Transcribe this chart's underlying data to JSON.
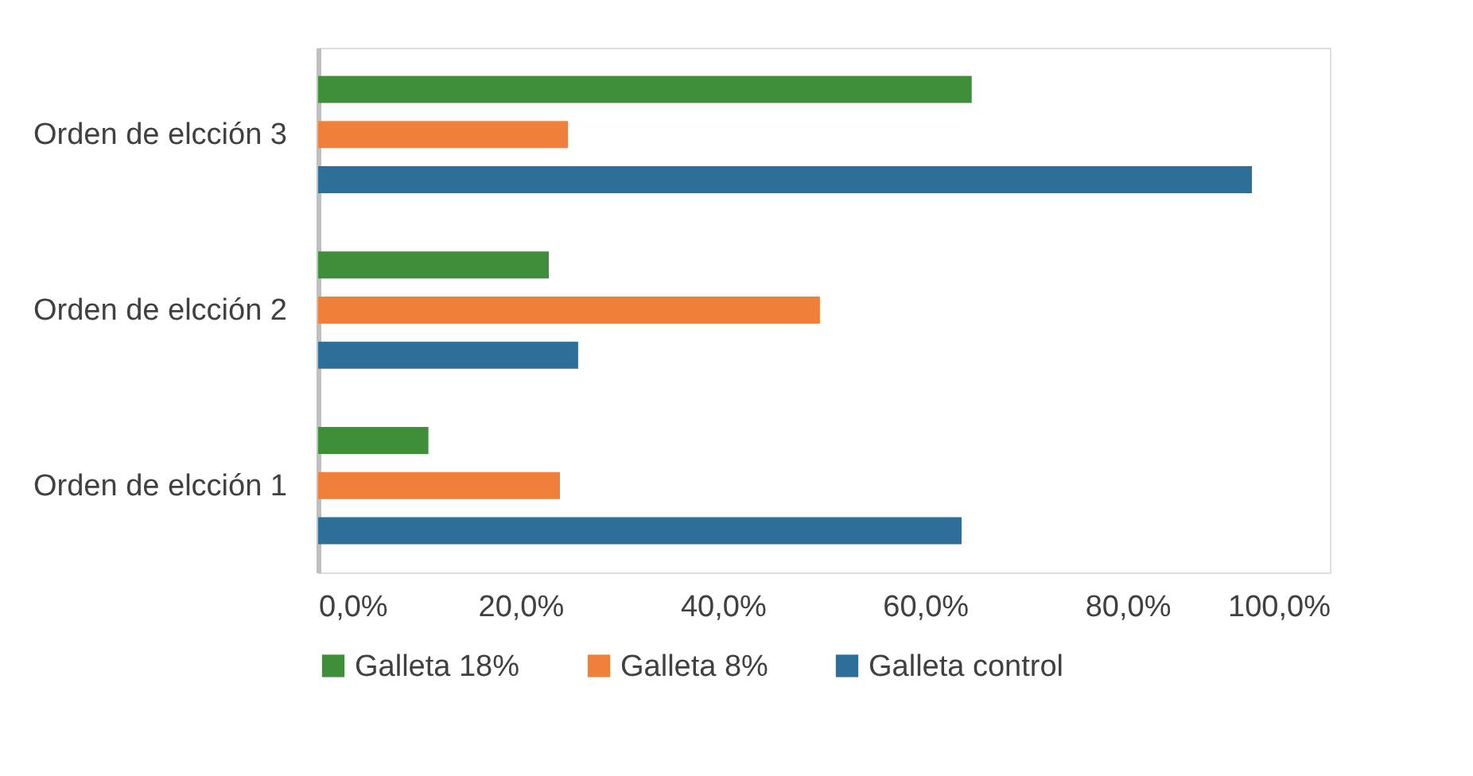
{
  "chart_data": {
    "type": "bar",
    "orientation": "horizontal",
    "categories": [
      "Orden de elcción 3",
      "Orden de elcción 2",
      "Orden de elcción 1"
    ],
    "series": [
      {
        "name": "Galleta 18%",
        "color": "#3f8f3a",
        "values": [
          64.6,
          22.8,
          10.9
        ]
      },
      {
        "name": "Galleta 8%",
        "color": "#f07f3c",
        "values": [
          24.7,
          49.6,
          23.9
        ]
      },
      {
        "name": "Galleta control",
        "color": "#2e6f9a",
        "values": [
          92.3,
          25.7,
          63.6
        ]
      }
    ],
    "xlim": [
      0,
      100
    ],
    "xticks": [
      {
        "value": 0,
        "label": "0,0%"
      },
      {
        "value": 20,
        "label": "20,0%"
      },
      {
        "value": 40,
        "label": "40,0%"
      },
      {
        "value": 60,
        "label": "60,0%"
      },
      {
        "value": 80,
        "label": "80,0%"
      },
      {
        "value": 100,
        "label": "100,0%"
      }
    ],
    "grid": false,
    "legend": "bottom"
  }
}
